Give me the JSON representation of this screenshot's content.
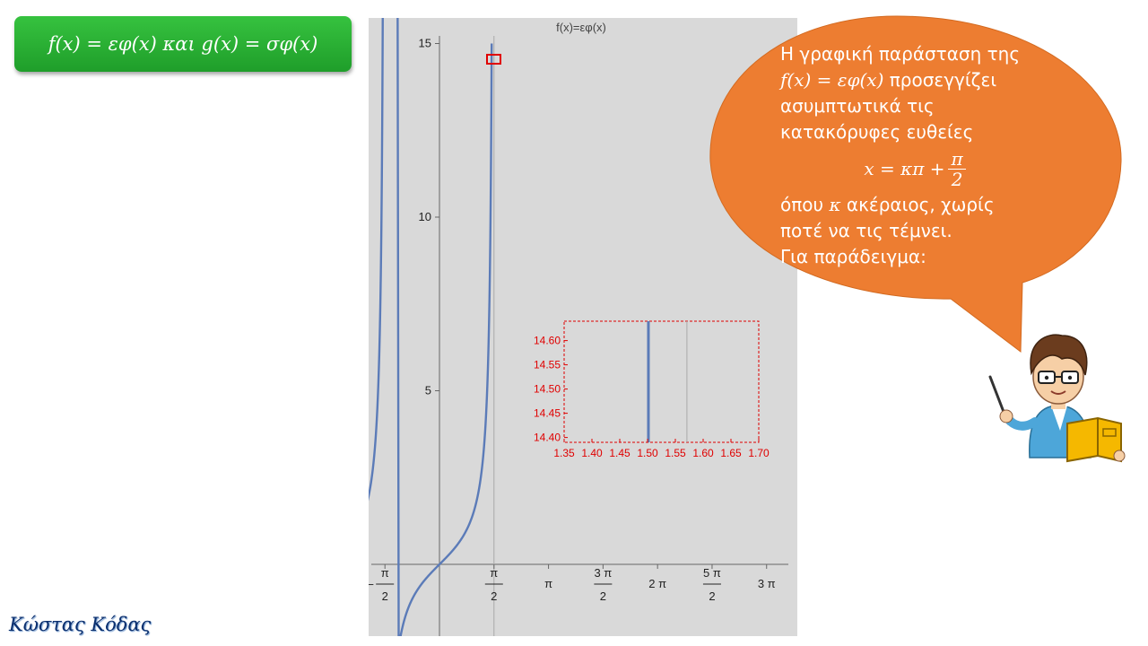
{
  "slide": {
    "title": "f(x) = εφ(x) και g(x) = σφ(x)",
    "author": "Κώστας Κόδας"
  },
  "bubble": {
    "line1": "Η γραφική παράσταση της",
    "line2_math": "f(x) = εφ(x)",
    "line2_text": " προσεγγίζει",
    "line3": "ασυμπτωτικά τις",
    "line4": "κατακόρυφες ευθείες",
    "formula_left": "x = κπ +",
    "formula_num": "π",
    "formula_den": "2",
    "line6_pre": "όπου ",
    "line6_math": "κ",
    "line6_post": " ακέραιος, χωρίς",
    "line7": "ποτέ να τις τέμνει.",
    "line8": "Για παράδειγμα:"
  },
  "colors": {
    "title_bg": "#2eb33a",
    "bubble": "#ed7d31",
    "plot_bg": "#d9d9d9",
    "curve": "#5b7bb8",
    "inset": "#e00000"
  },
  "chart_data": {
    "type": "line",
    "title": "f(x)=εφ(x)",
    "function": "tan(x)",
    "x_range": [
      -2.2,
      9.95
    ],
    "y_range": [
      -2.2,
      15
    ],
    "y_ticks": [
      5,
      10,
      15
    ],
    "x_ticks": [
      {
        "value": -1.5708,
        "num": "π",
        "den": "2",
        "sign": "−"
      },
      {
        "value": 1.5708,
        "num": "π",
        "den": "2",
        "sign": ""
      },
      {
        "value": 3.1416,
        "label": "π"
      },
      {
        "value": 4.7124,
        "num": "3 π",
        "den": "2",
        "sign": ""
      },
      {
        "value": 6.2832,
        "label": "2 π"
      },
      {
        "value": 7.854,
        "num": "5 π",
        "den": "2",
        "sign": ""
      },
      {
        "value": 9.4248,
        "label": "3 π"
      }
    ],
    "asymptote_x": 1.5708,
    "inset": {
      "x_range": [
        1.35,
        1.7
      ],
      "y_range": [
        14.39,
        14.64
      ],
      "x_ticks": [
        "1.35",
        "1.40",
        "1.45",
        "1.50",
        "1.55",
        "1.60",
        "1.65",
        "1.70"
      ],
      "y_ticks": [
        "14.60",
        "14.55",
        "14.50",
        "14.45",
        "14.40"
      ],
      "curve_x": 1.5016,
      "asymptote_x": 1.5708
    }
  }
}
